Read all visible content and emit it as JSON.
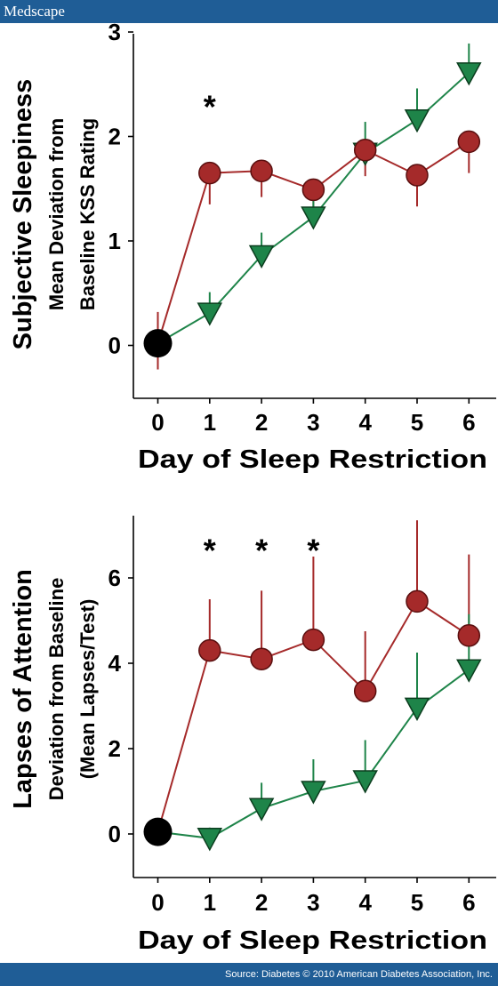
{
  "header": {
    "brand": "Medscape"
  },
  "footer": {
    "source": "Source: Diabetes © 2010 American Diabetes Association, Inc."
  },
  "colors": {
    "bar": "#1f5d96",
    "series_circle": "#a52a2a",
    "series_circle_edge": "#5a0f0f",
    "series_triangle": "#1e8449",
    "series_triangle_edge": "#0b3d1e",
    "baseline_marker": "#000000"
  },
  "chart_data": [
    {
      "type": "line",
      "title": "Subjective Sleepiness",
      "ylabel_lines": [
        "Mean Deviation from",
        "Baseline KSS  Rating"
      ],
      "xlabel": "Day of  Sleep Restriction",
      "x": [
        0,
        1,
        2,
        3,
        4,
        5,
        6
      ],
      "xlim": [
        -0.5,
        6.5
      ],
      "ylim": [
        -0.5,
        3
      ],
      "yticks": [
        0,
        1,
        2,
        3
      ],
      "baseline_point": {
        "x": 0,
        "y": 0.02
      },
      "series": [
        {
          "marker": "circle",
          "x": [
            1,
            2,
            3,
            4,
            5,
            6
          ],
          "values": [
            1.65,
            1.67,
            1.49,
            1.87,
            1.63,
            1.95
          ],
          "error": [
            0.3,
            0.25,
            0.2,
            0.25,
            0.3,
            0.3
          ],
          "error_dir": "down"
        },
        {
          "marker": "triangle-down",
          "x": [
            1,
            2,
            3,
            4,
            5,
            6
          ],
          "values": [
            0.31,
            0.86,
            1.23,
            1.84,
            2.16,
            2.61
          ],
          "error": [
            0.2,
            0.22,
            0.2,
            0.3,
            0.3,
            0.28
          ],
          "error_dir": "up"
        }
      ],
      "baseline_error": {
        "up": 0.3,
        "down": 0.25
      },
      "annotations": [
        {
          "text": "*",
          "x": 1,
          "y": 2.35
        }
      ]
    },
    {
      "type": "line",
      "title": "Lapses of Attention",
      "ylabel_lines": [
        "Deviation from Baseline",
        "(Mean Lapses/Test)"
      ],
      "xlabel": "Day of  Sleep Restriction",
      "x": [
        0,
        1,
        2,
        3,
        4,
        5,
        6
      ],
      "xlim": [
        -0.5,
        6.5
      ],
      "ylim": [
        -1,
        7.6
      ],
      "yticks": [
        0,
        2,
        4,
        6
      ],
      "baseline_point": {
        "x": 0,
        "y": 0.05
      },
      "series": [
        {
          "marker": "circle",
          "x": [
            1,
            2,
            3,
            4,
            5,
            6
          ],
          "values": [
            4.3,
            4.1,
            4.55,
            3.35,
            5.45,
            4.65
          ],
          "error": [
            1.2,
            1.6,
            1.95,
            1.4,
            1.9,
            1.9
          ],
          "error_dir": "up"
        },
        {
          "marker": "triangle-down",
          "x": [
            1,
            2,
            3,
            4,
            5,
            6
          ],
          "values": [
            -0.1,
            0.6,
            1.0,
            1.25,
            2.95,
            3.85
          ],
          "error": [
            0.25,
            0.6,
            0.75,
            0.95,
            1.3,
            1.3
          ],
          "error_dir": "up"
        }
      ],
      "annotations": [
        {
          "text": "*",
          "x": 1,
          "y": 6.8
        },
        {
          "text": "*",
          "x": 2,
          "y": 6.8
        },
        {
          "text": "*",
          "x": 3,
          "y": 6.8
        }
      ]
    }
  ]
}
